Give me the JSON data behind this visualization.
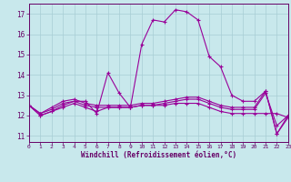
{
  "xlabel": "Windchill (Refroidissement éolien,°C)",
  "background_color": "#c8e8ec",
  "grid_color": "#a8cdd4",
  "line_color": "#990099",
  "xlim": [
    0,
    23
  ],
  "ylim": [
    10.7,
    17.5
  ],
  "yticks": [
    11,
    12,
    13,
    14,
    15,
    16,
    17
  ],
  "xticks": [
    0,
    1,
    2,
    3,
    4,
    5,
    6,
    7,
    8,
    9,
    10,
    11,
    12,
    13,
    14,
    15,
    16,
    17,
    18,
    19,
    20,
    21,
    22,
    23
  ],
  "curves": [
    [
      12.5,
      12.0,
      12.2,
      12.5,
      12.7,
      12.7,
      12.1,
      14.1,
      13.1,
      12.4,
      15.5,
      16.7,
      16.6,
      17.2,
      17.1,
      16.7,
      14.9,
      14.4,
      13.0,
      12.7,
      12.7,
      13.2,
      11.1,
      11.9
    ],
    [
      12.5,
      12.0,
      12.2,
      12.4,
      12.6,
      12.4,
      12.2,
      12.4,
      12.4,
      12.4,
      12.5,
      12.5,
      12.5,
      12.6,
      12.6,
      12.6,
      12.4,
      12.2,
      12.1,
      12.1,
      12.1,
      12.1,
      12.1,
      11.9
    ],
    [
      12.5,
      12.1,
      12.3,
      12.6,
      12.7,
      12.5,
      12.4,
      12.4,
      12.4,
      12.4,
      12.5,
      12.5,
      12.6,
      12.7,
      12.8,
      12.8,
      12.6,
      12.4,
      12.3,
      12.3,
      12.3,
      13.1,
      11.5,
      12.0
    ],
    [
      12.5,
      12.1,
      12.4,
      12.7,
      12.8,
      12.6,
      12.5,
      12.5,
      12.5,
      12.5,
      12.6,
      12.6,
      12.7,
      12.8,
      12.9,
      12.9,
      12.7,
      12.5,
      12.4,
      12.4,
      12.4,
      13.2,
      11.1,
      12.0
    ]
  ]
}
